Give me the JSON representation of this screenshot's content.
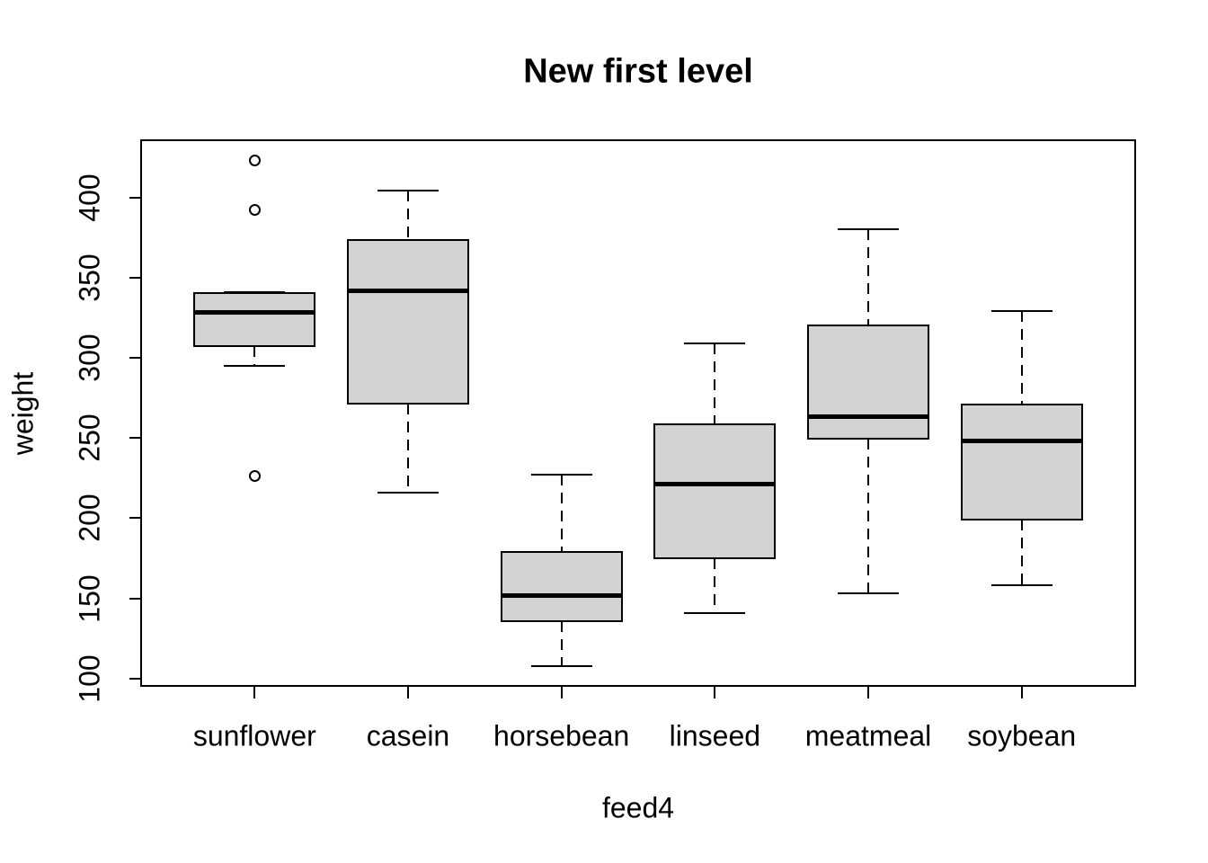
{
  "chart_data": {
    "type": "boxplot",
    "title": "New first level",
    "xlabel": "feed4",
    "ylabel": "weight",
    "categories": [
      "sunflower",
      "casein",
      "horsebean",
      "linseed",
      "meatmeal",
      "soybean"
    ],
    "yticks": [
      100,
      150,
      200,
      250,
      300,
      350,
      400
    ],
    "ylim": [
      95.4,
      435.6
    ],
    "xlim": [
      0.26,
      6.74
    ],
    "grid": false,
    "legend": "none",
    "box_fill": "#d3d3d3",
    "line_color": "#000000",
    "series": [
      {
        "name": "sunflower",
        "whisker_low": 295,
        "q1": 307.5,
        "median": 328,
        "q3": 340.5,
        "whisker_high": 341,
        "outliers": [
          226,
          392,
          423
        ]
      },
      {
        "name": "casein",
        "whisker_low": 216,
        "q1": 271.5,
        "median": 342,
        "q3": 373.5,
        "whisker_high": 404,
        "outliers": []
      },
      {
        "name": "horsebean",
        "whisker_low": 108,
        "q1": 136,
        "median": 151.5,
        "q3": 179,
        "whisker_high": 227,
        "outliers": []
      },
      {
        "name": "linseed",
        "whisker_low": 141,
        "q1": 175,
        "median": 221,
        "q3": 258.5,
        "whisker_high": 309,
        "outliers": []
      },
      {
        "name": "meatmeal",
        "whisker_low": 153,
        "q1": 249.5,
        "median": 263,
        "q3": 320,
        "whisker_high": 380,
        "outliers": []
      },
      {
        "name": "soybean",
        "whisker_low": 158,
        "q1": 199,
        "median": 248,
        "q3": 271,
        "whisker_high": 329,
        "outliers": []
      }
    ]
  }
}
